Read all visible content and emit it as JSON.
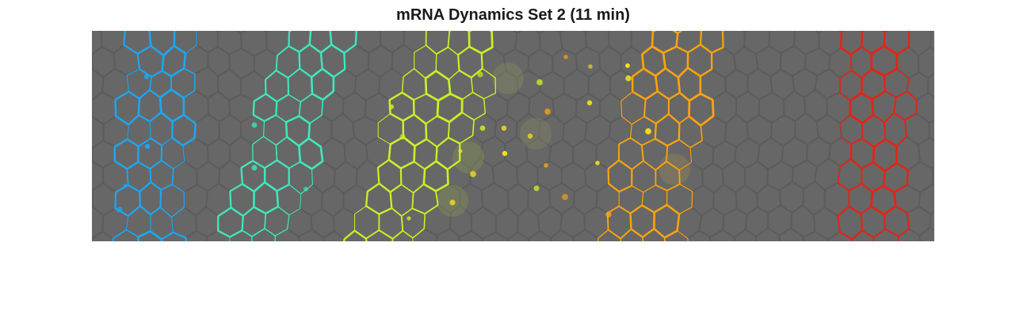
{
  "figure": {
    "title": "mRNA Dynamics Set 2 (11 min)"
  },
  "image": {
    "background_color": "#676767",
    "cell_border_color": "#5c5c5c",
    "stripes": [
      {
        "name": "stripe-1",
        "color": "#1ea6f0"
      },
      {
        "name": "stripe-2",
        "color": "#40e8bc"
      },
      {
        "name": "stripe-3",
        "color": "#c8f028"
      },
      {
        "name": "stripe-4",
        "color": "#fca40e"
      },
      {
        "name": "stripe-5",
        "color": "#e42414"
      }
    ],
    "spot_colors": [
      "#1ea6f0",
      "#40e8bc",
      "#d8f020",
      "#f5e21c",
      "#fca40e"
    ]
  }
}
